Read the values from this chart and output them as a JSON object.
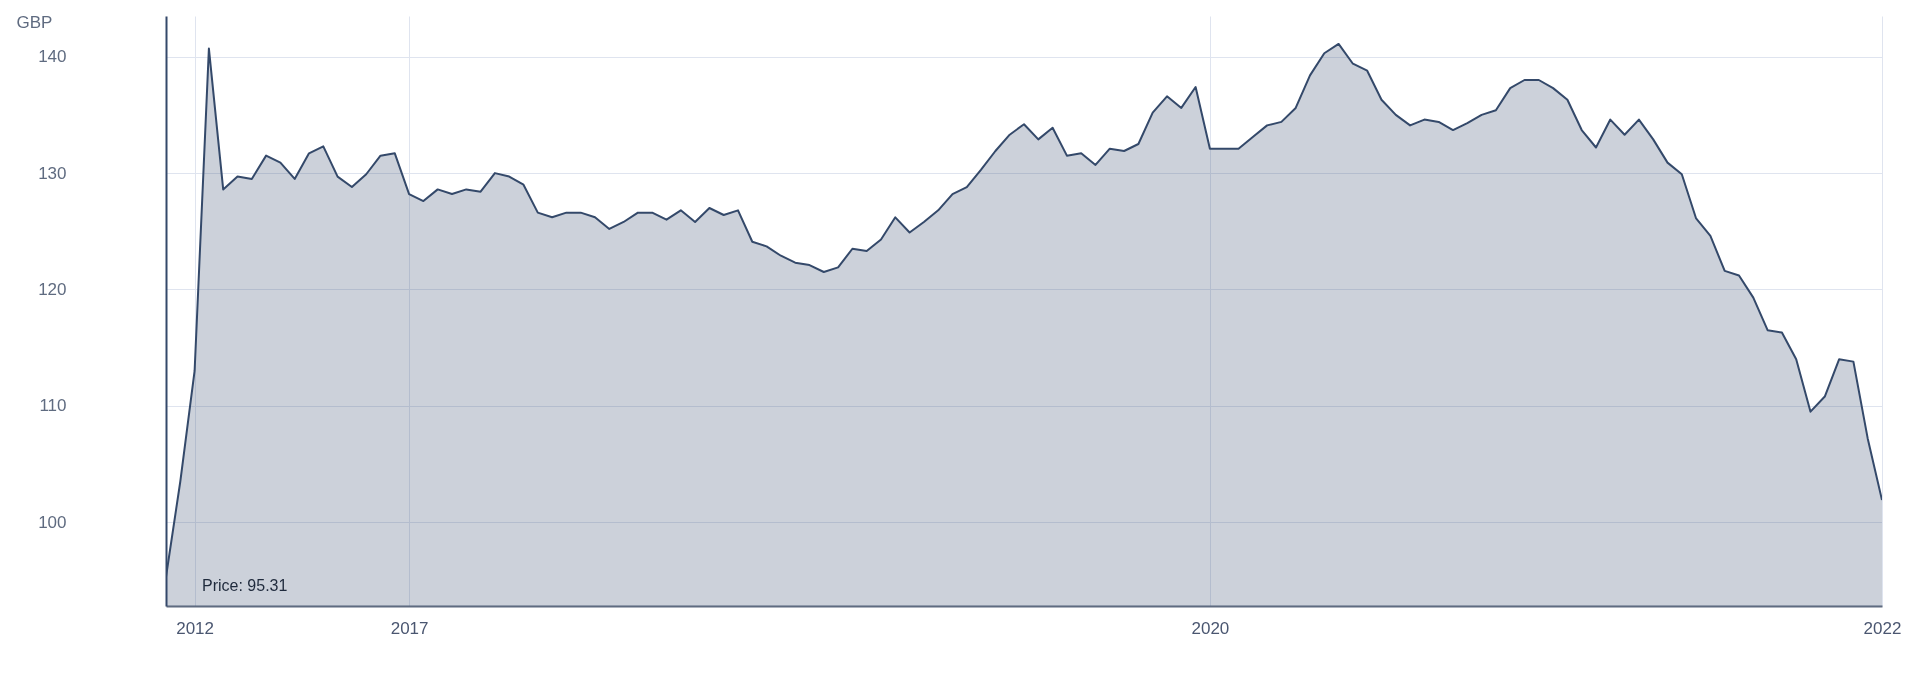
{
  "chart_data": {
    "type": "area",
    "ylabel": "GBP",
    "categories": [
      null,
      null,
      "2012",
      null,
      null,
      null,
      null,
      null,
      null,
      null,
      null,
      null,
      null,
      null,
      null,
      null,
      null,
      "2017",
      null,
      null,
      null,
      null,
      null,
      null,
      null,
      null,
      null,
      null,
      null,
      null,
      null,
      null,
      null,
      null,
      null,
      null,
      null,
      null,
      null,
      null,
      null,
      null,
      null,
      null,
      null,
      null,
      null,
      null,
      null,
      null,
      null,
      null,
      null,
      null,
      null,
      null,
      null,
      null,
      null,
      null,
      null,
      null,
      null,
      null,
      null,
      null,
      null,
      null,
      null,
      null,
      null,
      null,
      null,
      "2020",
      null,
      null,
      null,
      null,
      null,
      null,
      null,
      null,
      null,
      null,
      null,
      null,
      null,
      null,
      null,
      null,
      null,
      null,
      null,
      null,
      null,
      null,
      null,
      null,
      null,
      null,
      null,
      null,
      null,
      null,
      null,
      null,
      null,
      null,
      null,
      null,
      null,
      null,
      null,
      null,
      null,
      null,
      null,
      null,
      null,
      null,
      "2022"
    ],
    "series": [
      {
        "color": "#34496a",
        "values": [
          95.31,
          103.5,
          113,
          140.7,
          128.6,
          129.7,
          129.5,
          131.5,
          130.9,
          129.5,
          131.7,
          132.3,
          129.7,
          128.8,
          129.9,
          131.5,
          131.7,
          128.2,
          127.6,
          128.6,
          128.2,
          128.6,
          128.4,
          130,
          129.7,
          129,
          126.6,
          126.2,
          126.6,
          126.6,
          126.2,
          125.2,
          125.8,
          126.6,
          126.6,
          126,
          126.8,
          125.8,
          127,
          126.4,
          126.8,
          124.1,
          123.7,
          122.9,
          122.3,
          122.1,
          121.5,
          121.9,
          123.5,
          123.3,
          124.3,
          126.2,
          124.9,
          125.8,
          126.8,
          128.2,
          128.8,
          130.3,
          131.9,
          133.3,
          134.2,
          132.9,
          133.9,
          131.5,
          131.7,
          130.7,
          132.1,
          131.9,
          132.5,
          135.2,
          136.6,
          135.6,
          137.4,
          132.1,
          132.1,
          132.1,
          133.1,
          134.1,
          134.4,
          135.6,
          138.4,
          140.3,
          141.1,
          139.4,
          138.8,
          136.3,
          135,
          134.1,
          134.6,
          134.4,
          133.7,
          134.3,
          135,
          135.4,
          137.3,
          138,
          138,
          137.3,
          136.3,
          133.7,
          132.2,
          134.6,
          133.3,
          134.6,
          132.9,
          130.9,
          129.9,
          126.1,
          124.6,
          121.6,
          121.2,
          119.3,
          116.5,
          116.3,
          114,
          109.5,
          110.8,
          114,
          113.8,
          107.2,
          101.9
        ]
      }
    ],
    "ylim": [
      92.8,
      143.5
    ],
    "yticks": [
      100,
      110,
      120,
      130,
      140
    ],
    "grid": true,
    "annotations": [
      "Price: 95.31"
    ]
  }
}
